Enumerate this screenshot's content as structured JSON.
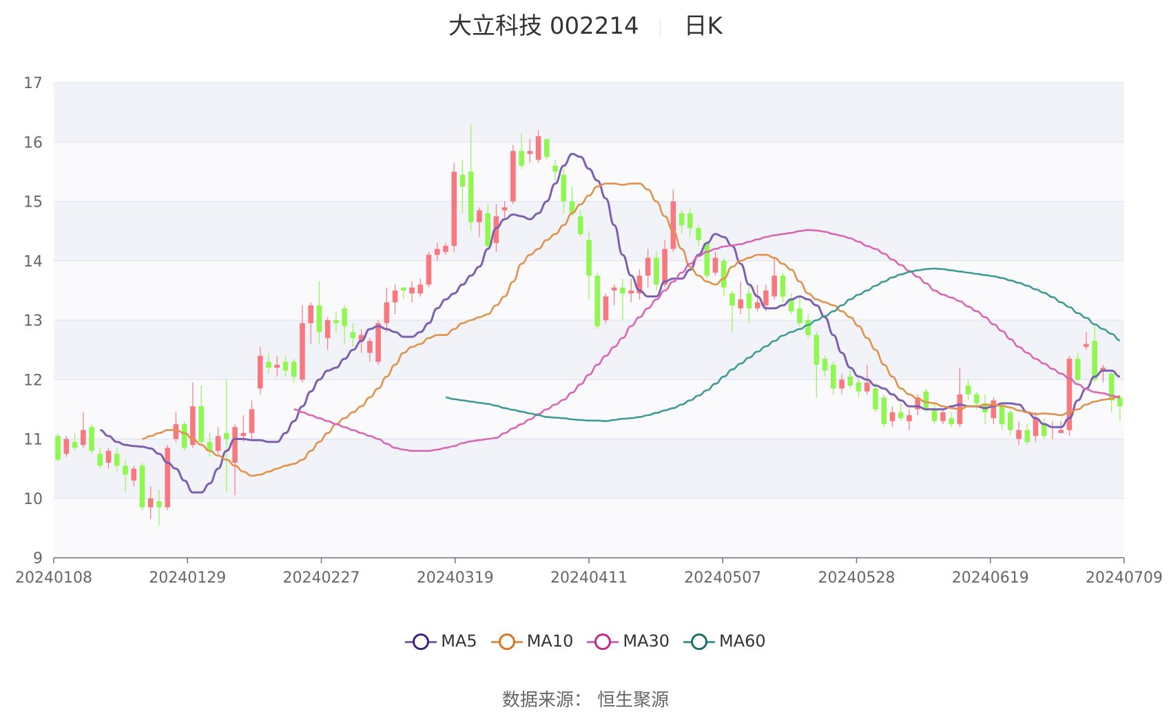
{
  "header": {
    "title": "大立科技 002214",
    "period": "日K"
  },
  "footer": {
    "source": "数据来源： 恒生聚源"
  },
  "legend_label_colors": {
    "up": "#f7787e",
    "down": "#8ff74f"
  },
  "chart_data": {
    "type": "candlestick",
    "ylim": [
      9,
      17
    ],
    "yticks": [
      9,
      10,
      11,
      12,
      13,
      14,
      15,
      16,
      17
    ],
    "grid": true,
    "legend_position": "bottom",
    "x_tick_labels": [
      "20240108",
      "20240129",
      "20240227",
      "20240319",
      "20240411",
      "20240507",
      "20240528",
      "20240619",
      "20240709"
    ],
    "candle_colors": {
      "up": "#f7787e",
      "down": "#8ff74f"
    },
    "candles": [
      [
        11.05,
        10.65,
        11.1,
        10.62
      ],
      [
        10.75,
        11.0,
        11.05,
        10.7
      ],
      [
        10.95,
        10.85,
        11.1,
        10.8
      ],
      [
        10.9,
        11.15,
        11.45,
        10.85
      ],
      [
        11.2,
        10.8,
        11.25,
        10.75
      ],
      [
        10.75,
        10.55,
        10.85,
        10.5
      ],
      [
        10.6,
        10.8,
        10.85,
        10.5
      ],
      [
        10.75,
        10.55,
        10.85,
        10.45
      ],
      [
        10.55,
        10.4,
        10.65,
        10.1
      ],
      [
        10.3,
        10.5,
        10.55,
        10.2
      ],
      [
        10.55,
        9.85,
        10.6,
        9.8
      ],
      [
        9.85,
        10.0,
        10.2,
        9.65
      ],
      [
        9.95,
        9.85,
        10.15,
        9.55
      ],
      [
        9.85,
        10.85,
        10.9,
        9.8
      ],
      [
        11.0,
        11.25,
        11.45,
        10.95
      ],
      [
        11.25,
        10.85,
        11.3,
        10.8
      ],
      [
        10.9,
        11.55,
        11.95,
        10.85
      ],
      [
        11.55,
        10.95,
        11.9,
        10.9
      ],
      [
        10.95,
        10.8,
        11.1,
        10.7
      ],
      [
        10.8,
        11.05,
        11.2,
        10.75
      ],
      [
        11.1,
        11.0,
        12.0,
        10.1
      ],
      [
        10.6,
        11.2,
        11.25,
        10.05
      ],
      [
        11.05,
        11.1,
        11.4,
        10.95
      ],
      [
        11.1,
        11.5,
        11.65,
        11.0
      ],
      [
        11.85,
        12.4,
        12.55,
        11.75
      ],
      [
        12.3,
        12.2,
        12.45,
        12.1
      ],
      [
        12.2,
        12.25,
        12.4,
        12.05
      ],
      [
        12.3,
        12.15,
        12.4,
        12.05
      ],
      [
        12.3,
        12.05,
        12.35,
        11.95
      ],
      [
        12.0,
        12.95,
        13.25,
        11.95
      ],
      [
        12.95,
        13.25,
        13.3,
        12.6
      ],
      [
        13.25,
        12.8,
        13.65,
        12.6
      ],
      [
        12.7,
        13.0,
        13.05,
        12.5
      ],
      [
        13.0,
        12.95,
        13.15,
        12.8
      ],
      [
        13.2,
        12.9,
        13.25,
        12.6
      ],
      [
        12.8,
        12.7,
        12.95,
        12.55
      ],
      [
        12.65,
        12.75,
        12.85,
        12.45
      ],
      [
        12.45,
        12.65,
        12.7,
        12.3
      ],
      [
        12.3,
        12.95,
        13.0,
        12.25
      ],
      [
        12.95,
        13.3,
        13.55,
        12.8
      ],
      [
        13.3,
        13.5,
        13.6,
        13.1
      ],
      [
        13.55,
        13.5,
        13.55,
        13.35
      ],
      [
        13.45,
        13.55,
        13.65,
        13.3
      ],
      [
        13.45,
        13.6,
        13.7,
        13.4
      ],
      [
        13.6,
        14.1,
        14.15,
        13.55
      ],
      [
        14.1,
        14.2,
        14.3,
        14.0
      ],
      [
        14.15,
        14.25,
        14.3,
        14.1
      ],
      [
        14.25,
        15.5,
        15.65,
        14.15
      ],
      [
        15.45,
        15.25,
        15.7,
        14.8
      ],
      [
        15.5,
        14.65,
        16.3,
        14.5
      ],
      [
        14.65,
        14.85,
        14.9,
        14.4
      ],
      [
        14.8,
        14.25,
        14.95,
        14.2
      ],
      [
        14.3,
        14.75,
        14.95,
        14.15
      ],
      [
        14.85,
        14.9,
        15.0,
        14.7
      ],
      [
        15.0,
        15.85,
        15.95,
        14.95
      ],
      [
        15.85,
        15.6,
        16.15,
        15.55
      ],
      [
        15.8,
        15.85,
        16.05,
        15.65
      ],
      [
        15.7,
        16.1,
        16.2,
        15.65
      ],
      [
        16.05,
        15.75,
        16.05,
        15.7
      ],
      [
        15.6,
        15.5,
        15.7,
        15.35
      ],
      [
        15.45,
        15.0,
        15.55,
        14.8
      ],
      [
        15.0,
        14.8,
        15.25,
        14.75
      ],
      [
        14.75,
        14.45,
        14.85,
        14.4
      ],
      [
        14.35,
        13.75,
        14.5,
        13.35
      ],
      [
        13.75,
        12.9,
        13.8,
        12.85
      ],
      [
        13.0,
        13.4,
        13.45,
        12.95
      ],
      [
        13.5,
        13.55,
        13.6,
        13.25
      ],
      [
        13.55,
        13.45,
        13.7,
        13.0
      ],
      [
        13.45,
        13.5,
        13.7,
        13.3
      ],
      [
        13.45,
        13.75,
        13.85,
        13.35
      ],
      [
        13.75,
        14.05,
        14.2,
        13.55
      ],
      [
        14.05,
        13.6,
        14.15,
        13.5
      ],
      [
        13.6,
        14.2,
        14.35,
        13.55
      ],
      [
        14.2,
        15.0,
        15.2,
        14.15
      ],
      [
        14.8,
        14.6,
        14.85,
        14.45
      ],
      [
        14.8,
        14.55,
        14.9,
        14.4
      ],
      [
        14.55,
        14.35,
        14.6,
        14.25
      ],
      [
        14.3,
        13.75,
        14.35,
        13.7
      ],
      [
        13.8,
        14.05,
        14.15,
        13.75
      ],
      [
        14.0,
        13.55,
        14.05,
        13.4
      ],
      [
        13.45,
        13.25,
        13.5,
        12.8
      ],
      [
        13.2,
        13.35,
        13.65,
        13.1
      ],
      [
        13.45,
        13.2,
        13.6,
        12.95
      ],
      [
        13.2,
        13.3,
        13.6,
        13.15
      ],
      [
        13.25,
        13.5,
        13.6,
        13.15
      ],
      [
        13.4,
        13.75,
        14.05,
        13.35
      ],
      [
        13.75,
        13.4,
        13.8,
        13.3
      ],
      [
        13.35,
        13.15,
        13.45,
        13.1
      ],
      [
        13.2,
        12.95,
        13.4,
        12.9
      ],
      [
        13.0,
        12.75,
        13.1,
        12.7
      ],
      [
        12.75,
        12.25,
        12.8,
        11.7
      ],
      [
        12.35,
        12.15,
        12.4,
        12.05
      ],
      [
        12.25,
        11.85,
        12.3,
        11.75
      ],
      [
        11.85,
        12.0,
        12.1,
        11.75
      ],
      [
        12.05,
        11.9,
        12.2,
        11.85
      ],
      [
        11.95,
        11.8,
        12.05,
        11.7
      ],
      [
        11.8,
        11.95,
        12.25,
        11.75
      ],
      [
        11.85,
        11.5,
        11.95,
        11.45
      ],
      [
        11.7,
        11.25,
        11.75,
        11.2
      ],
      [
        11.3,
        11.45,
        11.55,
        11.2
      ],
      [
        11.45,
        11.35,
        11.6,
        11.3
      ],
      [
        11.3,
        11.4,
        11.5,
        11.15
      ],
      [
        11.5,
        11.7,
        11.75,
        11.4
      ],
      [
        11.8,
        11.5,
        11.85,
        11.45
      ],
      [
        11.5,
        11.3,
        11.6,
        11.25
      ],
      [
        11.3,
        11.45,
        11.5,
        11.25
      ],
      [
        11.35,
        11.25,
        11.45,
        11.2
      ],
      [
        11.25,
        11.75,
        12.2,
        11.2
      ],
      [
        11.9,
        11.75,
        12.0,
        11.65
      ],
      [
        11.75,
        11.6,
        11.8,
        11.5
      ],
      [
        11.6,
        11.45,
        11.75,
        11.25
      ],
      [
        11.35,
        11.65,
        11.7,
        11.25
      ],
      [
        11.55,
        11.25,
        11.6,
        11.15
      ],
      [
        11.45,
        11.15,
        11.5,
        11.05
      ],
      [
        11.0,
        11.15,
        11.3,
        10.9
      ],
      [
        11.15,
        10.95,
        11.25,
        10.9
      ],
      [
        11.05,
        11.35,
        11.45,
        10.95
      ],
      [
        11.25,
        11.05,
        11.35,
        11.0
      ],
      [
        11.2,
        11.2,
        11.3,
        11.0
      ],
      [
        11.1,
        11.15,
        11.3,
        11.1
      ],
      [
        11.15,
        12.35,
        12.4,
        11.05
      ],
      [
        12.35,
        12.0,
        12.45,
        11.95
      ],
      [
        12.55,
        12.6,
        12.8,
        12.5
      ],
      [
        12.65,
        12.0,
        12.95,
        11.95
      ],
      [
        12.15,
        12.2,
        12.25,
        11.95
      ],
      [
        12.1,
        11.65,
        12.15,
        11.45
      ],
      [
        11.7,
        11.55,
        11.75,
        11.3
      ]
    ],
    "series": [
      {
        "name": "MA5",
        "color": "#7c5fb0",
        "marker_color": "#3d1f80",
        "values": [
          11.15,
          11.05,
          10.95,
          10.9,
          10.88,
          10.87,
          10.84,
          10.75,
          10.6,
          10.5,
          10.3,
          10.1,
          10.1,
          10.25,
          10.5,
          10.8,
          11.0,
          11.0,
          10.98,
          10.98,
          10.95,
          10.95,
          11.1,
          11.3,
          11.55,
          11.8,
          12.0,
          12.15,
          12.2,
          12.35,
          12.5,
          12.65,
          12.85,
          12.9,
          12.85,
          12.8,
          12.72,
          12.72,
          12.8,
          12.95,
          13.2,
          13.35,
          13.45,
          13.6,
          13.75,
          13.9,
          14.2,
          14.55,
          14.7,
          14.78,
          14.75,
          14.7,
          14.8,
          15.0,
          15.3,
          15.6,
          15.8,
          15.75,
          15.55,
          15.35,
          15.05,
          14.6,
          14.1,
          13.75,
          13.5,
          13.4,
          13.4,
          13.65,
          13.7,
          13.7,
          13.85,
          14.1,
          14.3,
          14.45,
          14.4,
          14.25,
          13.95,
          13.6,
          13.4,
          13.2,
          13.2,
          13.25,
          13.35,
          13.4,
          13.35,
          13.25,
          13.05,
          12.75,
          12.45,
          12.2,
          12.05,
          12.0,
          11.9,
          11.85,
          11.75,
          11.65,
          11.55,
          11.55,
          11.5,
          11.5,
          11.5,
          11.55,
          11.58,
          11.55,
          11.55,
          11.52,
          11.55,
          11.6,
          11.6,
          11.58,
          11.45,
          11.35,
          11.25,
          11.2,
          11.2,
          11.35,
          11.65,
          11.85,
          12.05,
          12.15,
          12.15,
          12.05
        ]
      },
      {
        "name": "MA10",
        "color": "#e0924a",
        "marker_color": "#d8741f",
        "values": [
          11.0,
          11.05,
          11.1,
          11.15,
          11.15,
          11.1,
          11.0,
          10.9,
          10.8,
          10.72,
          10.65,
          10.55,
          10.45,
          10.38,
          10.4,
          10.45,
          10.5,
          10.55,
          10.58,
          10.65,
          10.8,
          10.95,
          11.1,
          11.25,
          11.35,
          11.45,
          11.55,
          11.7,
          11.85,
          12.05,
          12.25,
          12.45,
          12.55,
          12.6,
          12.7,
          12.75,
          12.75,
          12.85,
          12.95,
          13.0,
          13.05,
          13.1,
          13.25,
          13.4,
          13.65,
          13.95,
          14.1,
          14.2,
          14.35,
          14.45,
          14.6,
          14.8,
          14.95,
          15.1,
          15.25,
          15.3,
          15.3,
          15.28,
          15.3,
          15.3,
          15.2,
          15.0,
          14.75,
          14.5,
          14.2,
          13.9,
          13.75,
          13.65,
          13.6,
          13.7,
          13.9,
          14.0,
          14.05,
          14.1,
          14.1,
          14.05,
          13.95,
          13.85,
          13.65,
          13.45,
          13.35,
          13.3,
          13.25,
          13.15,
          13.05,
          12.9,
          12.7,
          12.5,
          12.25,
          12.05,
          11.85,
          11.75,
          11.68,
          11.62,
          11.6,
          11.55,
          11.52,
          11.5,
          11.55,
          11.55,
          11.58,
          11.57,
          11.56,
          11.53,
          11.48,
          11.45,
          11.42,
          11.43,
          11.42,
          11.4,
          11.45,
          11.5,
          11.58,
          11.63,
          11.66,
          11.68,
          11.72
        ]
      },
      {
        "name": "MA30",
        "color": "#d966b3",
        "marker_color": "#c2268c",
        "values": [
          11.5,
          11.45,
          11.4,
          11.35,
          11.3,
          11.25,
          11.2,
          11.15,
          11.1,
          11.05,
          11.0,
          10.92,
          10.85,
          10.82,
          10.8,
          10.8,
          10.8,
          10.82,
          10.85,
          10.88,
          10.93,
          10.96,
          10.98,
          11.0,
          11.02,
          11.1,
          11.18,
          11.25,
          11.33,
          11.42,
          11.5,
          11.58,
          11.66,
          11.78,
          11.92,
          12.08,
          12.25,
          12.4,
          12.55,
          12.7,
          12.9,
          13.05,
          13.2,
          13.35,
          13.5,
          13.65,
          13.8,
          13.95,
          14.08,
          14.15,
          14.2,
          14.24,
          14.26,
          14.28,
          14.32,
          14.36,
          14.4,
          14.43,
          14.45,
          14.47,
          14.5,
          14.52,
          14.51,
          14.49,
          14.45,
          14.42,
          14.38,
          14.32,
          14.25,
          14.2,
          14.12,
          14.02,
          13.93,
          13.83,
          13.73,
          13.62,
          13.5,
          13.43,
          13.38,
          13.32,
          13.23,
          13.15,
          13.05,
          12.93,
          12.82,
          12.68,
          12.55,
          12.45,
          12.35,
          12.27,
          12.18,
          12.1,
          12.02,
          11.92,
          11.84,
          11.79,
          11.77,
          11.73,
          11.7
        ]
      },
      {
        "name": "MA60",
        "color": "#3e9a94",
        "marker_color": "#1d6e69",
        "values": [
          11.7,
          11.67,
          11.65,
          11.63,
          11.61,
          11.59,
          11.56,
          11.52,
          11.49,
          11.46,
          11.43,
          11.4,
          11.37,
          11.36,
          11.35,
          11.33,
          11.32,
          11.31,
          11.31,
          11.3,
          11.32,
          11.34,
          11.35,
          11.37,
          11.4,
          11.44,
          11.48,
          11.52,
          11.58,
          11.65,
          11.73,
          11.82,
          11.93,
          12.05,
          12.17,
          12.27,
          12.37,
          12.47,
          12.56,
          12.65,
          12.74,
          12.8,
          12.85,
          12.92,
          13.0,
          13.07,
          13.15,
          13.25,
          13.35,
          13.43,
          13.5,
          13.58,
          13.65,
          13.72,
          13.77,
          13.81,
          13.84,
          13.86,
          13.87,
          13.86,
          13.84,
          13.82,
          13.8,
          13.78,
          13.76,
          13.74,
          13.71,
          13.67,
          13.63,
          13.58,
          13.52,
          13.46,
          13.39,
          13.3,
          13.22,
          13.12,
          13.04,
          12.93,
          12.85,
          12.77,
          12.66
        ]
      }
    ]
  }
}
